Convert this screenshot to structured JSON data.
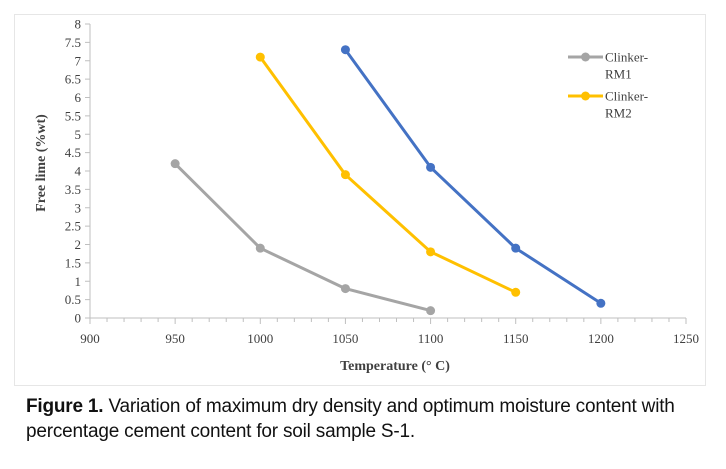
{
  "chart_data": {
    "type": "line",
    "title": "",
    "xlabel": "Temperature (° C)",
    "ylabel": "Free lime (%wt)",
    "xlim": [
      900,
      1250
    ],
    "ylim": [
      0,
      8
    ],
    "xticks": [
      900,
      950,
      1000,
      1050,
      1100,
      1150,
      1200,
      1250
    ],
    "yticks": [
      0,
      0.5,
      1,
      1.5,
      2,
      2.5,
      3,
      3.5,
      4,
      4.5,
      5,
      5.5,
      6,
      6.5,
      7,
      7.5,
      8
    ],
    "legend_position": "top-right",
    "series": [
      {
        "name": "Clinker-RM1",
        "legend_lines": [
          "Clinker-",
          "RM1"
        ],
        "color": "#a5a5a5",
        "x": [
          950,
          1000,
          1050,
          1100
        ],
        "y": [
          4.2,
          1.9,
          0.8,
          0.2
        ]
      },
      {
        "name": "Clinker-RM2",
        "legend_lines": [
          "Clinker-",
          "RM2"
        ],
        "color": "#ffc000",
        "x": [
          1000,
          1050,
          1100,
          1150
        ],
        "y": [
          7.1,
          3.9,
          1.8,
          0.7
        ]
      },
      {
        "name": "",
        "color": "#4472c4",
        "x": [
          1050,
          1100,
          1150,
          1200
        ],
        "y": [
          7.3,
          4.1,
          1.9,
          0.4
        ]
      }
    ]
  },
  "caption": {
    "label": "Figure 1.",
    "text": " Variation of maximum dry density and optimum moisture content with percentage cement content for soil sample S-1."
  }
}
